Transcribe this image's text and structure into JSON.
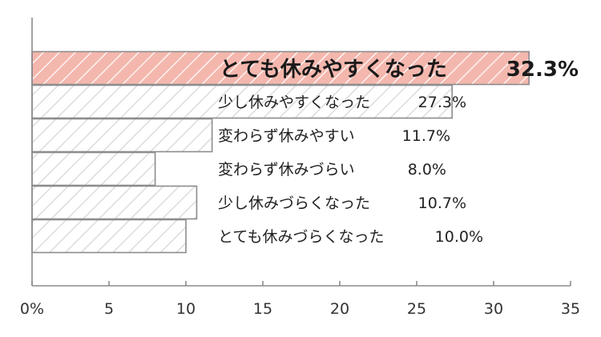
{
  "chart_data": {
    "type": "bar",
    "orientation": "horizontal",
    "categories": [
      "とても休みやすくなった",
      "少し休みやすくなった",
      "変わらず休みやすい",
      "変わらず休みづらい",
      "少し休みづらくなった",
      "とても休みづらくなった"
    ],
    "values": [
      32.3,
      27.3,
      11.7,
      8.0,
      10.7,
      10.0
    ],
    "value_labels": [
      "32.3%",
      "27.3%",
      "11.7%",
      "8.0%",
      "10.7%",
      "10.0%"
    ],
    "highlight_index": 0,
    "xlim": [
      0,
      35
    ],
    "xticks": [
      0,
      5,
      10,
      15,
      20,
      25,
      30,
      35
    ],
    "xtick_labels": [
      "0%",
      "5",
      "10",
      "15",
      "20",
      "25",
      "30",
      "35"
    ],
    "bar_style": "diagonal-hatch",
    "grid": false,
    "colors": {
      "highlight_fill": "#f4b7ad",
      "highlight_hatch": "#ffffff",
      "normal_fill": "#ffffff",
      "normal_hatch": "#d6d6d6",
      "bar_stroke": "#8c8c8c",
      "axis": "#8c8c8c"
    }
  }
}
